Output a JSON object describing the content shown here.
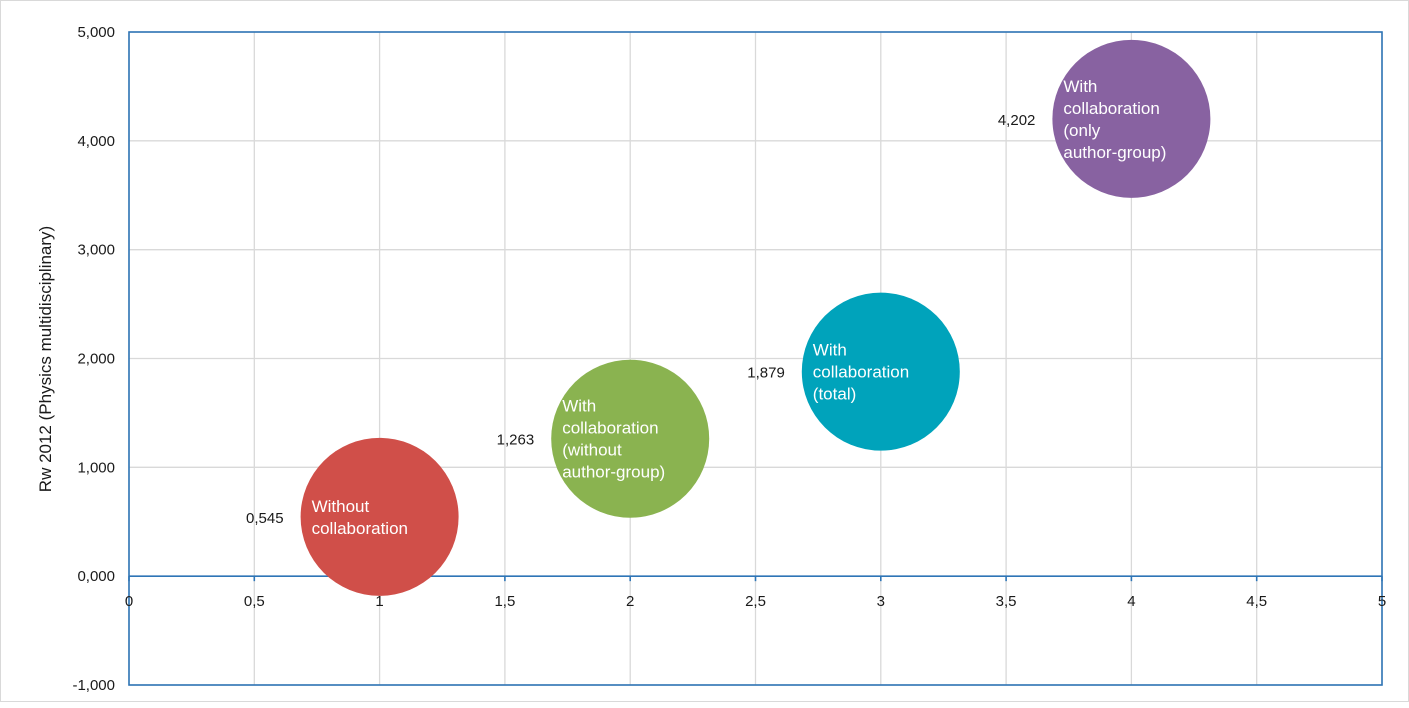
{
  "chart_data": {
    "type": "scatter",
    "variant": "bubble",
    "title": "",
    "xlabel": "",
    "ylabel": "Rw 2012 (Physics multidisciplinary)",
    "xlim": [
      0,
      5
    ],
    "ylim": [
      -1000,
      5000
    ],
    "x_ticks": [
      0,
      0.5,
      1,
      1.5,
      2,
      2.5,
      3,
      3.5,
      4,
      4.5,
      5
    ],
    "x_tick_labels": [
      "0",
      "0,5",
      "1",
      "1,5",
      "2",
      "2,5",
      "3",
      "3,5",
      "4",
      "4,5",
      "5"
    ],
    "y_ticks": [
      -1000,
      0,
      1000,
      2000,
      3000,
      4000,
      5000
    ],
    "y_tick_labels": [
      "-1,000",
      "0,000",
      "1,000",
      "2,000",
      "3,000",
      "4,000",
      "5,000"
    ],
    "grid": true,
    "axis_color": "#2e75b6",
    "grid_color": "#d9d9d9",
    "points": [
      {
        "x": 1,
        "y": 545,
        "value_label": "0,545",
        "lines": [
          "Without",
          "collaboration"
        ],
        "color": "#d04f49"
      },
      {
        "x": 2,
        "y": 1263,
        "value_label": "1,263",
        "lines": [
          "With",
          "collaboration",
          "(without",
          "author-group)"
        ],
        "color": "#8ab350"
      },
      {
        "x": 3,
        "y": 1879,
        "value_label": "1,879",
        "lines": [
          "With",
          "collaboration",
          "(total)"
        ],
        "color": "#00a3bb"
      },
      {
        "x": 4,
        "y": 4202,
        "value_label": "4,202",
        "lines": [
          "With",
          "collaboration",
          "(only",
          "author-group)"
        ],
        "color": "#8862a1"
      }
    ]
  }
}
